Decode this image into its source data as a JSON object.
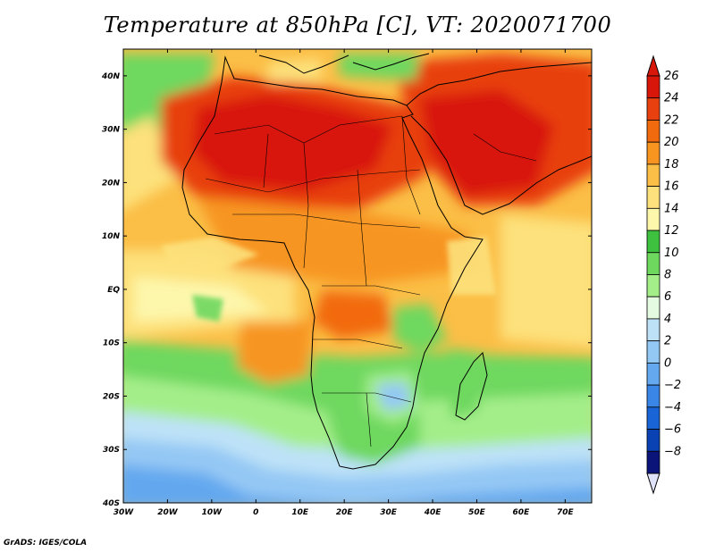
{
  "title": "Temperature at 850hPa [C], VT: 2020071700",
  "credit": "GrADS: IGES/COLA",
  "map": {
    "lon_range": [
      -30,
      76
    ],
    "lat_range": [
      -40,
      45
    ],
    "x_ticks": [
      {
        "value": -30,
        "label": "30W"
      },
      {
        "value": -20,
        "label": "20W"
      },
      {
        "value": -10,
        "label": "10W"
      },
      {
        "value": 0,
        "label": "0"
      },
      {
        "value": 10,
        "label": "10E"
      },
      {
        "value": 20,
        "label": "20E"
      },
      {
        "value": 30,
        "label": "30E"
      },
      {
        "value": 40,
        "label": "40E"
      },
      {
        "value": 50,
        "label": "50E"
      },
      {
        "value": 60,
        "label": "60E"
      },
      {
        "value": 70,
        "label": "70E"
      }
    ],
    "y_ticks": [
      {
        "value": 40,
        "label": "40N"
      },
      {
        "value": 30,
        "label": "30N"
      },
      {
        "value": 20,
        "label": "20N"
      },
      {
        "value": 10,
        "label": "10N"
      },
      {
        "value": 0,
        "label": "EQ"
      },
      {
        "value": -10,
        "label": "10S"
      },
      {
        "value": -20,
        "label": "20S"
      },
      {
        "value": -30,
        "label": "30S"
      },
      {
        "value": -40,
        "label": "40S"
      }
    ]
  },
  "colorbar": {
    "levels": [
      26,
      24,
      22,
      20,
      18,
      16,
      14,
      12,
      10,
      8,
      6,
      4,
      2,
      0,
      -2,
      -4,
      -6,
      -8
    ],
    "level_labels": [
      "26",
      "24",
      "22",
      "20",
      "18",
      "16",
      "14",
      "12",
      "10",
      "8",
      "6",
      "4",
      "2",
      "0",
      "−2",
      "−4",
      "−6",
      "−8"
    ],
    "colors": [
      "#d8160a",
      "#e8410f",
      "#f26a0e",
      "#f79520",
      "#fbbe46",
      "#fde17c",
      "#fdf7ac",
      "#3ec13e",
      "#6ed85e",
      "#a4ee8a",
      "#e4fbe2",
      "#bde2f8",
      "#94c8f4",
      "#64a8ef",
      "#3a86e6",
      "#1964d7",
      "#0a42b4",
      "#0b1478"
    ],
    "top_color": "#d8160a",
    "bottom_color": "#e0e2fa"
  }
}
